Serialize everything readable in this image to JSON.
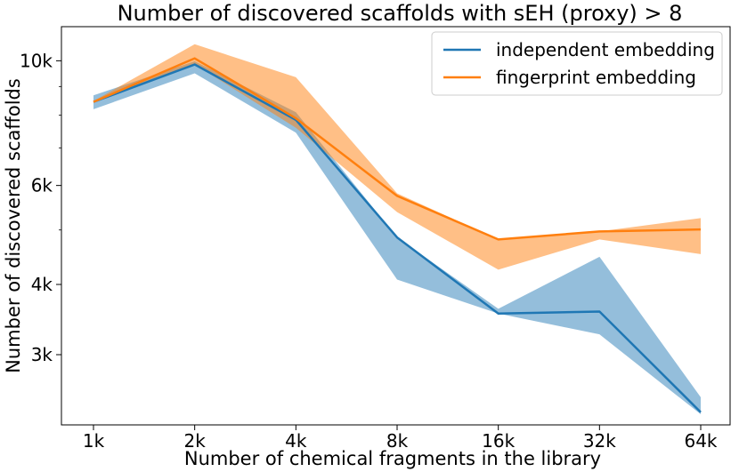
{
  "chart_data": {
    "type": "line",
    "title": "Number of discovered scaffolds with sEH (proxy) > 8",
    "xlabel": "Number of chemical fragments in the library",
    "ylabel": "Number of discovered scaffolds",
    "categories": [
      "1k",
      "2k",
      "4k",
      "8k",
      "16k",
      "32k",
      "64k"
    ],
    "y_scale": "log",
    "ylim": [
      2250,
      11500
    ],
    "y_ticks": [
      {
        "value": 3000,
        "label": "3k"
      },
      {
        "value": 4000,
        "label": "4k"
      },
      {
        "value": 6000,
        "label": "6k"
      },
      {
        "value": 10000,
        "label": "10k"
      }
    ],
    "y_minor_ticks": [
      5000,
      7000,
      8000,
      9000
    ],
    "legend_position": "top-right",
    "grid": false,
    "series": [
      {
        "name": "independent embedding",
        "color": "#1f77b4",
        "values": [
          8450,
          9850,
          7850,
          4850,
          3550,
          3580,
          2370
        ],
        "lower": [
          8200,
          9500,
          7450,
          4080,
          3550,
          3260,
          2350
        ],
        "upper": [
          8680,
          9980,
          8100,
          4850,
          3620,
          4480,
          2520
        ]
      },
      {
        "name": "fingerprint embedding",
        "color": "#ff7f0e",
        "values": [
          8450,
          10100,
          7900,
          5750,
          4810,
          4970,
          5010
        ],
        "lower": [
          8450,
          9850,
          7600,
          5380,
          4250,
          4810,
          4530
        ],
        "upper": [
          8480,
          10700,
          9350,
          5810,
          4810,
          4970,
          5250
        ]
      }
    ]
  }
}
